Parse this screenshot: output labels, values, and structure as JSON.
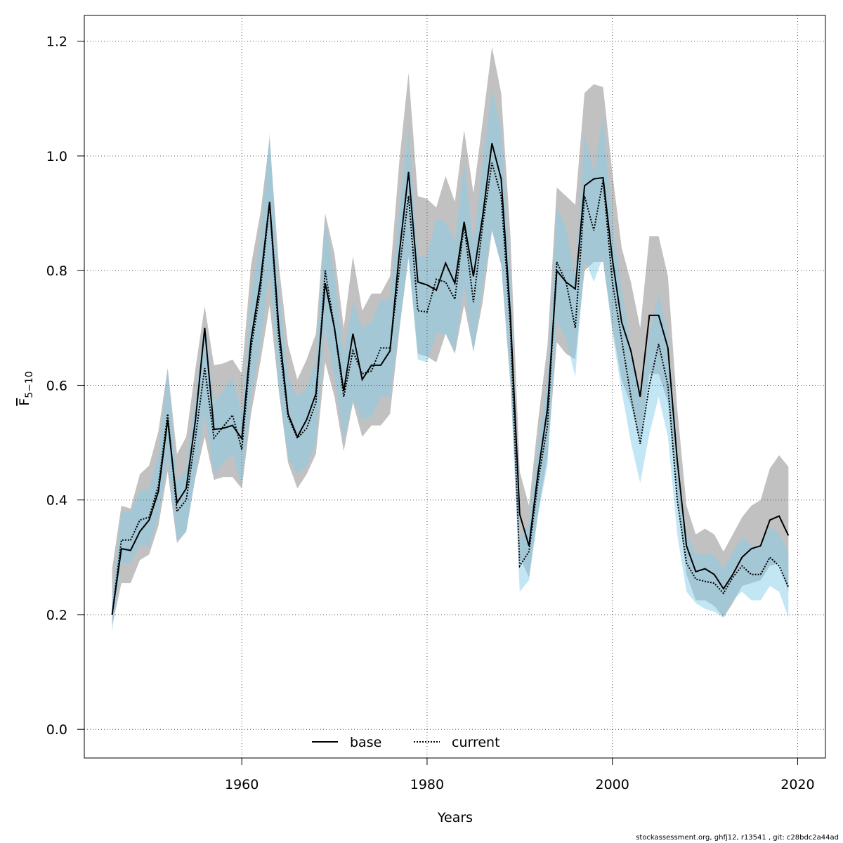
{
  "chart_data": {
    "type": "line",
    "xlabel": "Years",
    "ylabel": {
      "main": "F",
      "subscript": "5−10"
    },
    "xlim": [
      1943,
      2023
    ],
    "ylim": [
      -0.05,
      1.245
    ],
    "x_ticks": [
      1960,
      1980,
      2000,
      2020
    ],
    "y_ticks": [
      0.0,
      0.2,
      0.4,
      0.6,
      0.8,
      1.0,
      1.2
    ],
    "y_tick_labels": [
      "0.0",
      "0.2",
      "0.4",
      "0.6",
      "0.8",
      "1.0",
      "1.2"
    ],
    "grid": true,
    "legend_position": "bottom-center",
    "years": [
      1946,
      1947,
      1948,
      1949,
      1950,
      1951,
      1952,
      1953,
      1954,
      1955,
      1956,
      1957,
      1958,
      1959,
      1960,
      1961,
      1962,
      1963,
      1964,
      1965,
      1966,
      1967,
      1968,
      1969,
      1970,
      1971,
      1972,
      1973,
      1974,
      1975,
      1976,
      1977,
      1978,
      1979,
      1980,
      1981,
      1982,
      1983,
      1984,
      1985,
      1986,
      1987,
      1988,
      1989,
      1990,
      1991,
      1992,
      1993,
      1994,
      1995,
      1996,
      1997,
      1998,
      1999,
      2000,
      2001,
      2002,
      2003,
      2004,
      2005,
      2006,
      2007,
      2008,
      2009,
      2010,
      2011,
      2012,
      2013,
      2014,
      2015,
      2016,
      2017,
      2018,
      2019
    ],
    "series": [
      {
        "name": "base",
        "line_color": "#000000",
        "band_color": "#bebebe",
        "values": [
          0.2,
          0.315,
          0.312,
          0.345,
          0.365,
          0.415,
          0.54,
          0.395,
          0.42,
          0.54,
          0.7,
          0.523,
          0.525,
          0.53,
          0.507,
          0.68,
          0.78,
          0.92,
          0.7,
          0.55,
          0.51,
          0.54,
          0.585,
          0.778,
          0.7,
          0.59,
          0.69,
          0.61,
          0.635,
          0.635,
          0.66,
          0.83,
          0.972,
          0.78,
          0.775,
          0.766,
          0.813,
          0.778,
          0.885,
          0.79,
          0.895,
          1.022,
          0.96,
          0.72,
          0.375,
          0.32,
          0.45,
          0.56,
          0.8,
          0.78,
          0.768,
          0.948,
          0.96,
          0.962,
          0.82,
          0.71,
          0.66,
          0.58,
          0.722,
          0.722,
          0.665,
          0.47,
          0.32,
          0.275,
          0.28,
          0.27,
          0.245,
          0.27,
          0.3,
          0.315,
          0.32,
          0.365,
          0.372,
          0.338
        ],
        "lower": [
          0.18,
          0.255,
          0.255,
          0.295,
          0.305,
          0.355,
          0.45,
          0.325,
          0.345,
          0.44,
          0.51,
          0.435,
          0.44,
          0.44,
          0.42,
          0.55,
          0.64,
          0.74,
          0.59,
          0.465,
          0.42,
          0.445,
          0.48,
          0.64,
          0.58,
          0.485,
          0.57,
          0.51,
          0.53,
          0.53,
          0.55,
          0.695,
          0.825,
          0.655,
          0.65,
          0.64,
          0.69,
          0.655,
          0.74,
          0.66,
          0.745,
          0.87,
          0.81,
          0.6,
          0.3,
          0.265,
          0.38,
          0.475,
          0.675,
          0.655,
          0.645,
          0.8,
          0.815,
          0.815,
          0.7,
          0.61,
          0.565,
          0.5,
          0.62,
          0.62,
          0.57,
          0.4,
          0.27,
          0.225,
          0.225,
          0.215,
          0.195,
          0.22,
          0.25,
          0.255,
          0.26,
          0.285,
          0.29,
          0.24
        ],
        "upper": [
          0.28,
          0.39,
          0.385,
          0.445,
          0.46,
          0.52,
          0.63,
          0.48,
          0.51,
          0.63,
          0.738,
          0.635,
          0.638,
          0.645,
          0.62,
          0.81,
          0.9,
          1.03,
          0.81,
          0.67,
          0.61,
          0.645,
          0.69,
          0.9,
          0.83,
          0.7,
          0.825,
          0.73,
          0.76,
          0.76,
          0.79,
          0.99,
          1.145,
          0.93,
          0.925,
          0.91,
          0.965,
          0.92,
          1.045,
          0.935,
          1.06,
          1.19,
          1.11,
          0.86,
          0.45,
          0.39,
          0.54,
          0.67,
          0.945,
          0.93,
          0.915,
          1.11,
          1.125,
          1.12,
          0.97,
          0.84,
          0.78,
          0.7,
          0.86,
          0.86,
          0.79,
          0.56,
          0.39,
          0.34,
          0.35,
          0.34,
          0.31,
          0.34,
          0.37,
          0.39,
          0.4,
          0.455,
          0.478,
          0.458
        ]
      },
      {
        "name": "current",
        "line_color": "#000000",
        "band_color": "#87ceeb",
        "values": [
          0.2,
          0.33,
          0.33,
          0.365,
          0.37,
          0.425,
          0.55,
          0.38,
          0.4,
          0.51,
          0.63,
          0.508,
          0.528,
          0.548,
          0.488,
          0.665,
          0.765,
          0.918,
          0.68,
          0.545,
          0.508,
          0.525,
          0.57,
          0.8,
          0.7,
          0.58,
          0.66,
          0.62,
          0.625,
          0.665,
          0.665,
          0.8,
          0.93,
          0.73,
          0.728,
          0.785,
          0.78,
          0.75,
          0.88,
          0.745,
          0.88,
          0.988,
          0.93,
          0.7,
          0.285,
          0.31,
          0.435,
          0.53,
          0.815,
          0.78,
          0.7,
          0.93,
          0.87,
          0.958,
          0.78,
          0.68,
          0.58,
          0.498,
          0.6,
          0.672,
          0.6,
          0.4,
          0.29,
          0.262,
          0.258,
          0.255,
          0.237,
          0.265,
          0.285,
          0.27,
          0.27,
          0.3,
          0.285,
          0.248
        ],
        "lower": [
          0.17,
          0.29,
          0.29,
          0.32,
          0.32,
          0.37,
          0.47,
          0.33,
          0.345,
          0.445,
          0.55,
          0.445,
          0.465,
          0.48,
          0.425,
          0.58,
          0.67,
          0.8,
          0.595,
          0.475,
          0.445,
          0.46,
          0.5,
          0.7,
          0.612,
          0.505,
          0.575,
          0.54,
          0.545,
          0.58,
          0.58,
          0.7,
          0.82,
          0.645,
          0.64,
          0.69,
          0.69,
          0.66,
          0.775,
          0.655,
          0.775,
          0.87,
          0.81,
          0.61,
          0.24,
          0.26,
          0.375,
          0.46,
          0.715,
          0.68,
          0.615,
          0.82,
          0.78,
          0.825,
          0.69,
          0.59,
          0.5,
          0.43,
          0.515,
          0.58,
          0.51,
          0.34,
          0.24,
          0.22,
          0.21,
          0.205,
          0.195,
          0.225,
          0.24,
          0.225,
          0.225,
          0.25,
          0.24,
          0.195
        ],
        "upper": [
          0.23,
          0.38,
          0.38,
          0.415,
          0.42,
          0.48,
          0.63,
          0.43,
          0.455,
          0.58,
          0.71,
          0.57,
          0.59,
          0.615,
          0.55,
          0.755,
          0.86,
          1.04,
          0.77,
          0.615,
          0.58,
          0.595,
          0.645,
          0.89,
          0.79,
          0.655,
          0.745,
          0.7,
          0.71,
          0.75,
          0.75,
          0.905,
          1.045,
          0.825,
          0.825,
          0.89,
          0.885,
          0.85,
          0.99,
          0.845,
          0.99,
          1.115,
          1.05,
          0.795,
          0.33,
          0.36,
          0.5,
          0.61,
          0.91,
          0.875,
          0.79,
          1.04,
          0.97,
          1.07,
          0.88,
          0.77,
          0.665,
          0.575,
          0.69,
          0.76,
          0.69,
          0.46,
          0.34,
          0.305,
          0.305,
          0.305,
          0.28,
          0.31,
          0.335,
          0.32,
          0.32,
          0.355,
          0.34,
          0.31
        ]
      }
    ]
  },
  "footer": "stockassessment.org, ghfj12, r13541 , git: c28bdc2a44ad"
}
